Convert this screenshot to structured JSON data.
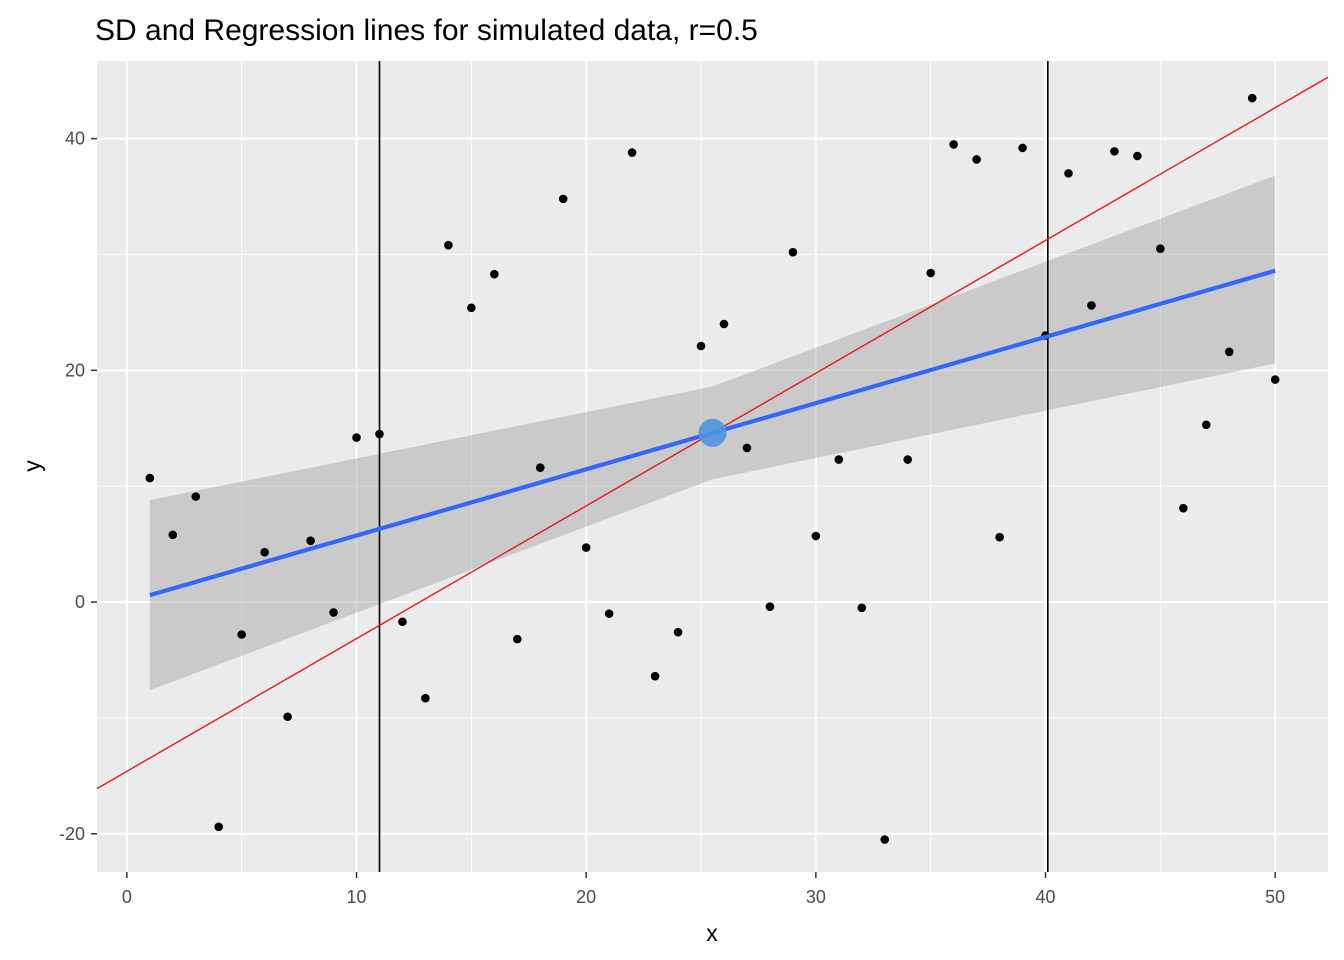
{
  "chart_data": {
    "type": "scatter",
    "title": "SD and Regression lines for simulated data, r=0.5",
    "xlabel": "x",
    "ylabel": "y",
    "xlim": [
      -1.3,
      52.3
    ],
    "ylim": [
      -23.3,
      46.7
    ],
    "x_ticks": [
      0,
      10,
      20,
      30,
      40,
      50
    ],
    "y_ticks": [
      -20,
      0,
      20,
      40
    ],
    "x_tick_labels": [
      "0",
      "10",
      "20",
      "30",
      "40",
      "50"
    ],
    "y_tick_labels": [
      "-20",
      "0",
      "20",
      "40"
    ],
    "grid": true,
    "legend": "none",
    "points": [
      {
        "x": 1,
        "y": 10.7
      },
      {
        "x": 2,
        "y": 5.8
      },
      {
        "x": 3,
        "y": 9.1
      },
      {
        "x": 4,
        "y": -19.4
      },
      {
        "x": 5,
        "y": -2.8
      },
      {
        "x": 6,
        "y": 4.3
      },
      {
        "x": 7,
        "y": -9.9
      },
      {
        "x": 8,
        "y": 5.3
      },
      {
        "x": 9,
        "y": -0.9
      },
      {
        "x": 10,
        "y": 14.2
      },
      {
        "x": 11,
        "y": 14.5
      },
      {
        "x": 12,
        "y": -1.7
      },
      {
        "x": 13,
        "y": -8.3
      },
      {
        "x": 14,
        "y": 30.8
      },
      {
        "x": 15,
        "y": 25.4
      },
      {
        "x": 16,
        "y": 28.3
      },
      {
        "x": 17,
        "y": -3.2
      },
      {
        "x": 18,
        "y": 11.6
      },
      {
        "x": 19,
        "y": 34.8
      },
      {
        "x": 20,
        "y": 4.7
      },
      {
        "x": 21,
        "y": -1.0
      },
      {
        "x": 22,
        "y": 38.8
      },
      {
        "x": 23,
        "y": -6.4
      },
      {
        "x": 24,
        "y": -2.6
      },
      {
        "x": 25,
        "y": 22.1
      },
      {
        "x": 26,
        "y": 24.0
      },
      {
        "x": 27,
        "y": 13.3
      },
      {
        "x": 28,
        "y": -0.4
      },
      {
        "x": 29,
        "y": 30.2
      },
      {
        "x": 30,
        "y": 5.7
      },
      {
        "x": 31,
        "y": 12.3
      },
      {
        "x": 32,
        "y": -0.5
      },
      {
        "x": 33,
        "y": -20.5
      },
      {
        "x": 34,
        "y": 12.3
      },
      {
        "x": 35,
        "y": 28.4
      },
      {
        "x": 36,
        "y": 39.5
      },
      {
        "x": 37,
        "y": 38.2
      },
      {
        "x": 38,
        "y": 5.6
      },
      {
        "x": 39,
        "y": 39.2
      },
      {
        "x": 40,
        "y": 23.0
      },
      {
        "x": 41,
        "y": 37.0
      },
      {
        "x": 42,
        "y": 25.6
      },
      {
        "x": 43,
        "y": 38.9
      },
      {
        "x": 44,
        "y": 38.5
      },
      {
        "x": 45,
        "y": 30.5
      },
      {
        "x": 46,
        "y": 8.1
      },
      {
        "x": 47,
        "y": 15.3
      },
      {
        "x": 48,
        "y": 21.6
      },
      {
        "x": 49,
        "y": 43.5
      },
      {
        "x": 50,
        "y": 19.2
      }
    ],
    "regression_line": {
      "x": [
        1,
        50
      ],
      "y": [
        0.6,
        28.6
      ],
      "color": "#3366FF"
    },
    "confidence_band": {
      "x": [
        1,
        25.5,
        50
      ],
      "lower": [
        -7.6,
        10.6,
        20.6
      ],
      "upper": [
        8.8,
        18.6,
        36.8
      ],
      "color": "#999999"
    },
    "sd_line": {
      "x": [
        -1.3,
        52.3
      ],
      "y": [
        -16.1,
        45.3
      ],
      "color": "#E41A1C"
    },
    "vertical_lines": [
      {
        "x": 11.0
      },
      {
        "x": 40.1
      }
    ],
    "center_point": {
      "x": 25.5,
      "y": 14.6,
      "color": "#4F94E0"
    },
    "colors": {
      "panel_background": "#EBEBEB",
      "grid": "#FFFFFF",
      "point": "#000000",
      "vline": "#000000"
    }
  }
}
